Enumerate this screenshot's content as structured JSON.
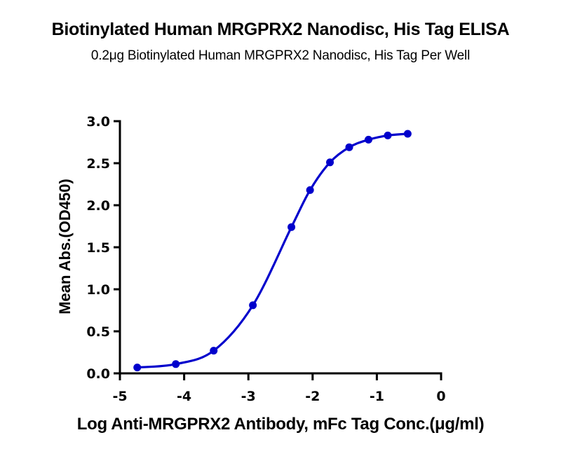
{
  "chart_data": {
    "type": "line",
    "title": "Biotinylated Human MRGPRX2 Nanodisc, His Tag ELISA",
    "subtitle": "0.2μg Biotinylated Human MRGPRX2 Nanodisc, His Tag Per Well",
    "xlabel": "Log Anti-MRGPRX2 Antibody, mFc Tag Conc.(μg/ml)",
    "ylabel": "Mean Abs.(OD450)",
    "xlim": [
      -5,
      0
    ],
    "ylim": [
      0,
      3.0
    ],
    "x_ticks": [
      "-5",
      "-4",
      "-3",
      "-2",
      "-1",
      "0"
    ],
    "y_ticks": [
      "0.0",
      "0.5",
      "1.0",
      "1.5",
      "2.0",
      "2.5",
      "3.0"
    ],
    "grid": false,
    "legend": null,
    "series": [
      {
        "name": "Biotinylated Human MRGPRX2 Nanodisc, His Tag",
        "color": "#0000CC",
        "marker": "circle",
        "fit": "sigmoidal 4PL curve",
        "x": [
          -4.73,
          -4.13,
          -3.54,
          -2.93,
          -2.33,
          -2.04,
          -1.73,
          -1.43,
          -1.13,
          -0.83,
          -0.52
        ],
        "y": [
          0.07,
          0.11,
          0.27,
          0.81,
          1.74,
          2.18,
          2.51,
          2.69,
          2.78,
          2.83,
          2.85
        ]
      }
    ]
  }
}
